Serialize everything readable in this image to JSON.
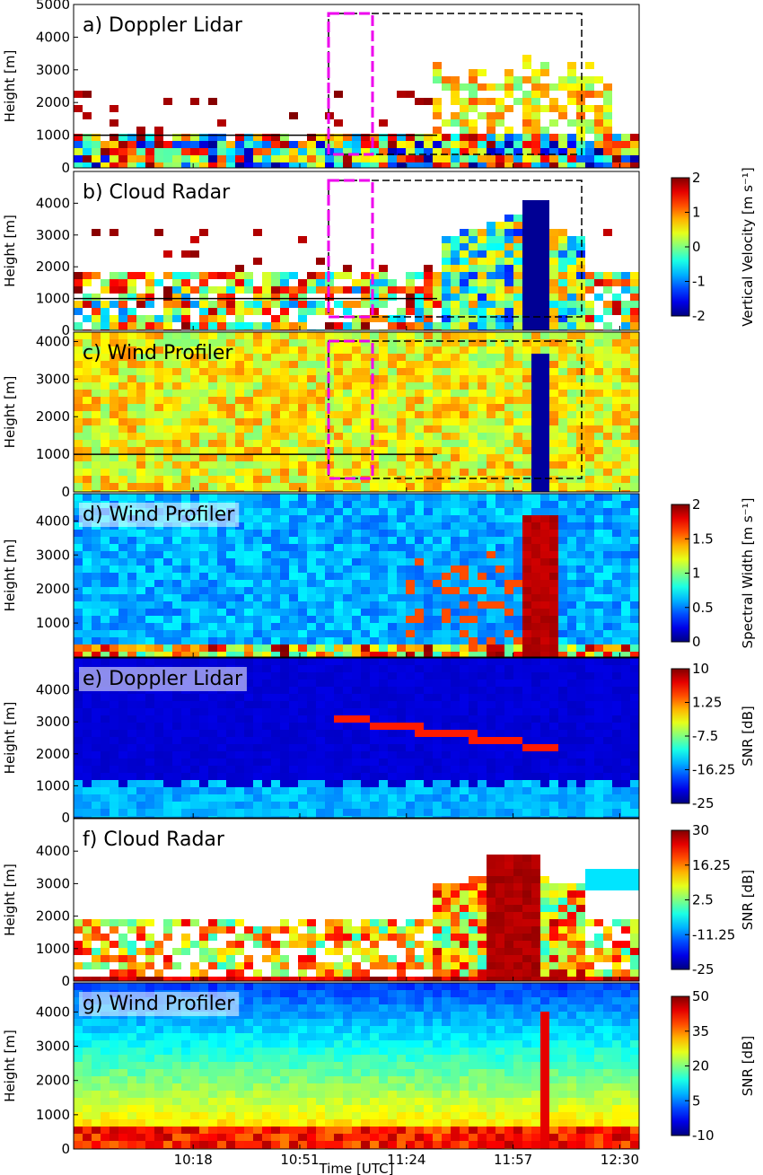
{
  "chart_data": [
    {
      "type": "heatmap",
      "title": "a) Doppler Lidar",
      "ylabel": "Height [m]",
      "ylim": [
        0,
        5000
      ],
      "yticks": [
        0,
        1000,
        2000,
        3000,
        4000,
        5000
      ]
    },
    {
      "type": "heatmap",
      "title": "b) Cloud Radar",
      "ylabel": "Height [m]",
      "ylim": [
        0,
        5000
      ],
      "yticks": [
        0,
        1000,
        2000,
        3000,
        4000
      ],
      "colorbar": {
        "label": "Vertical Velocity [m s⁻¹]",
        "clim": [
          -2,
          2
        ],
        "ticks": [
          2,
          1,
          0,
          -1,
          -2
        ]
      }
    },
    {
      "type": "heatmap",
      "title": "c) Wind Profiler",
      "ylabel": "Height [m]",
      "ylim": [
        0,
        4250
      ],
      "yticks": [
        0,
        1000,
        2000,
        3000,
        4000
      ]
    },
    {
      "type": "heatmap",
      "title": "d) Wind Profiler",
      "ylabel": "Height [m]",
      "ylim": [
        0,
        4800
      ],
      "yticks": [
        1000,
        2000,
        3000,
        4000
      ],
      "colorbar": {
        "label": "Spectral Width [m s⁻¹]",
        "clim": [
          0,
          2
        ],
        "ticks": [
          2,
          1.5,
          1,
          0.5,
          0
        ]
      }
    },
    {
      "type": "heatmap",
      "title": "e) Doppler Lidar",
      "ylabel": "Height [m]",
      "ylim": [
        0,
        5000
      ],
      "yticks": [
        0,
        1000,
        2000,
        3000,
        4000
      ],
      "colorbar": {
        "label": "SNR [dB]",
        "clim": [
          -25,
          10
        ],
        "ticks": [
          10,
          1.25,
          -7.5,
          -16.25,
          -25
        ]
      }
    },
    {
      "type": "heatmap",
      "title": "f) Cloud Radar",
      "ylabel": "Height [m]",
      "ylim": [
        0,
        5000
      ],
      "yticks": [
        0,
        1000,
        2000,
        3000,
        4000
      ],
      "colorbar": {
        "label": "SNR [dB]",
        "clim": [
          -25,
          30
        ],
        "ticks": [
          30,
          16.25,
          2.5,
          -11.25,
          -25
        ]
      }
    },
    {
      "type": "heatmap",
      "title": "g) Wind Profiler",
      "ylabel": "Height [m]",
      "ylim": [
        0,
        4850
      ],
      "yticks": [
        0,
        1000,
        2000,
        3000,
        4000
      ],
      "colorbar": {
        "label": "SNR [dB]",
        "clim": [
          -10,
          50
        ],
        "ticks": [
          50,
          35,
          20,
          5,
          -10
        ]
      },
      "xlabel": "Time [UTC]",
      "xlim": [
        581,
        756
      ],
      "xticks": [
        {
          "value": 618,
          "label": "10:18"
        },
        {
          "value": 651,
          "label": "10:51"
        },
        {
          "value": 684,
          "label": "11:24"
        },
        {
          "value": 717,
          "label": "11:57"
        },
        {
          "value": 750,
          "label": "12:30"
        }
      ]
    }
  ]
}
